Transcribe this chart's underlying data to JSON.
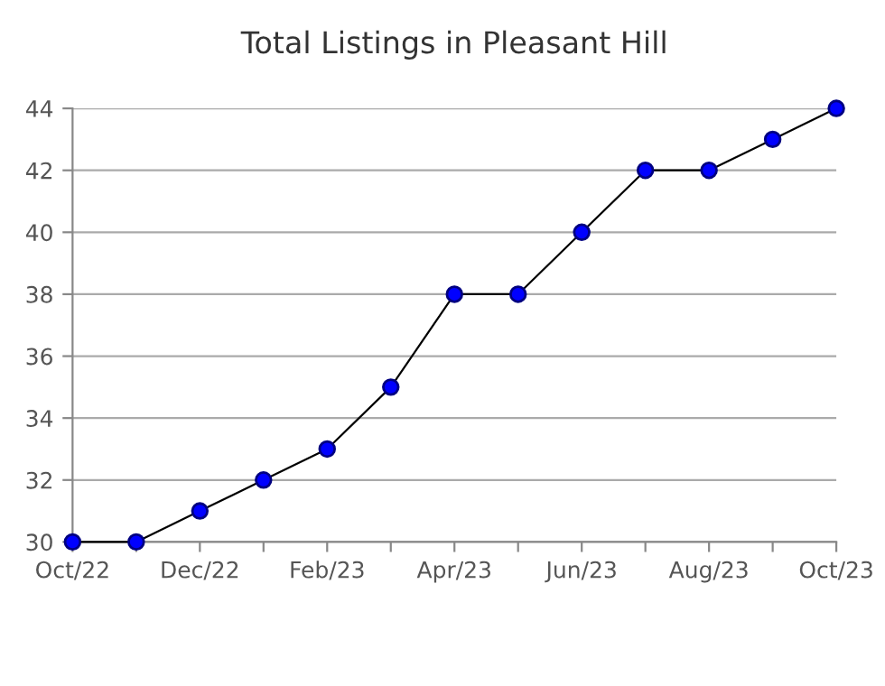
{
  "chart_data": {
    "type": "line",
    "title": "Total Listings in Pleasant Hill",
    "categories": [
      "Oct/22",
      null,
      "Dec/22",
      null,
      "Feb/23",
      null,
      "Apr/23",
      null,
      "Jun/23",
      null,
      "Aug/23",
      null,
      "Oct/23"
    ],
    "series": [
      {
        "color": "#0000ff",
        "values": [
          30,
          30,
          31,
          32,
          33,
          35,
          38,
          38,
          40,
          42,
          42,
          43,
          44
        ]
      }
    ],
    "ylim": [
      30,
      44
    ],
    "yticks": [
      30,
      32,
      34,
      36,
      38,
      40,
      42,
      44
    ],
    "grid": "y",
    "marker": "circle",
    "line_style": "solid",
    "legend": false
  }
}
